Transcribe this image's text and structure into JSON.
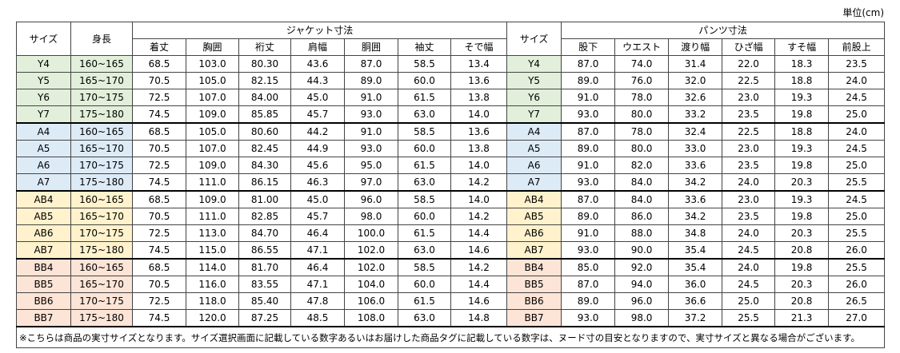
{
  "unit": "単位(cm)",
  "header": {
    "size": "サイズ",
    "height": "身長",
    "jacket": "ジャケット寸法",
    "jacket_cols": [
      "着丈",
      "胸囲",
      "裄丈",
      "肩幅",
      "胴囲",
      "袖丈",
      "そで幅"
    ],
    "size2": "サイズ",
    "pants": "パンツ寸法",
    "pants_cols": [
      "股下",
      "ウエスト",
      "渡り幅",
      "ひざ幅",
      "すそ幅",
      "前股上"
    ]
  },
  "rows": [
    [
      "Y4",
      "160~165",
      "68.5",
      "103.0",
      "80.30",
      "43.6",
      "87.0",
      "58.5",
      "13.4",
      "Y4",
      "87.0",
      "74.0",
      "31.4",
      "22.0",
      "18.3",
      "23.5"
    ],
    [
      "Y5",
      "165~170",
      "70.5",
      "105.0",
      "82.15",
      "44.3",
      "89.0",
      "60.0",
      "13.6",
      "Y5",
      "89.0",
      "76.0",
      "32.0",
      "22.5",
      "18.8",
      "24.0"
    ],
    [
      "Y6",
      "170~175",
      "72.5",
      "107.0",
      "84.00",
      "45.0",
      "91.0",
      "61.5",
      "13.8",
      "Y6",
      "91.0",
      "78.0",
      "32.6",
      "23.0",
      "19.3",
      "24.5"
    ],
    [
      "Y7",
      "175~180",
      "74.5",
      "109.0",
      "85.85",
      "45.7",
      "93.0",
      "63.0",
      "14.0",
      "Y7",
      "93.0",
      "80.0",
      "33.2",
      "23.5",
      "19.8",
      "25.0"
    ],
    [
      "A4",
      "160~165",
      "68.5",
      "105.0",
      "80.60",
      "44.2",
      "91.0",
      "58.5",
      "13.6",
      "A4",
      "87.0",
      "78.0",
      "32.4",
      "22.5",
      "18.8",
      "24.0"
    ],
    [
      "A5",
      "165~170",
      "70.5",
      "107.0",
      "82.45",
      "44.9",
      "93.0",
      "60.0",
      "13.8",
      "A5",
      "89.0",
      "80.0",
      "33.0",
      "23.0",
      "19.3",
      "24.5"
    ],
    [
      "A6",
      "170~175",
      "72.5",
      "109.0",
      "84.30",
      "45.6",
      "95.0",
      "61.5",
      "14.0",
      "A6",
      "91.0",
      "82.0",
      "33.6",
      "23.5",
      "19.8",
      "25.0"
    ],
    [
      "A7",
      "175~180",
      "74.5",
      "111.0",
      "86.15",
      "46.3",
      "97.0",
      "63.0",
      "14.2",
      "A7",
      "93.0",
      "84.0",
      "34.2",
      "24.0",
      "20.3",
      "25.5"
    ],
    [
      "AB4",
      "160~165",
      "68.5",
      "109.0",
      "81.00",
      "45.0",
      "96.0",
      "58.5",
      "14.0",
      "AB4",
      "87.0",
      "84.0",
      "33.6",
      "23.0",
      "19.3",
      "24.5"
    ],
    [
      "AB5",
      "165~170",
      "70.5",
      "111.0",
      "82.85",
      "45.7",
      "98.0",
      "60.0",
      "14.2",
      "AB5",
      "89.0",
      "86.0",
      "34.2",
      "23.5",
      "19.8",
      "25.0"
    ],
    [
      "AB6",
      "170~175",
      "72.5",
      "113.0",
      "84.70",
      "46.4",
      "100.0",
      "61.5",
      "14.4",
      "AB6",
      "91.0",
      "88.0",
      "34.8",
      "24.0",
      "20.3",
      "25.5"
    ],
    [
      "AB7",
      "175~180",
      "74.5",
      "115.0",
      "86.55",
      "47.1",
      "102.0",
      "63.0",
      "14.6",
      "AB7",
      "93.0",
      "90.0",
      "35.4",
      "24.5",
      "20.8",
      "26.0"
    ],
    [
      "BB4",
      "160~165",
      "68.5",
      "114.0",
      "81.70",
      "46.4",
      "102.0",
      "58.5",
      "14.2",
      "BB4",
      "85.0",
      "92.0",
      "35.4",
      "24.0",
      "19.8",
      "25.5"
    ],
    [
      "BB5",
      "165~170",
      "70.5",
      "116.0",
      "83.55",
      "47.1",
      "104.0",
      "60.0",
      "14.4",
      "BB5",
      "87.0",
      "94.0",
      "36.0",
      "24.5",
      "20.3",
      "26.0"
    ],
    [
      "BB6",
      "170~175",
      "72.5",
      "118.0",
      "85.40",
      "47.8",
      "106.0",
      "61.5",
      "14.6",
      "BB6",
      "89.0",
      "96.0",
      "36.6",
      "25.0",
      "20.8",
      "26.5"
    ],
    [
      "BB7",
      "175~180",
      "74.5",
      "120.0",
      "87.25",
      "48.5",
      "108.0",
      "63.0",
      "14.8",
      "BB7",
      "93.0",
      "98.0",
      "37.2",
      "25.5",
      "21.3",
      "27.0"
    ]
  ],
  "note": "※こちらは商品の実寸サイズとなります。サイズ選択画面に記載している数字あるいはお届けした商品タグに記載している数字は、ヌード寸の目安となりますので、実寸サイズと異なる場合がございます。"
}
